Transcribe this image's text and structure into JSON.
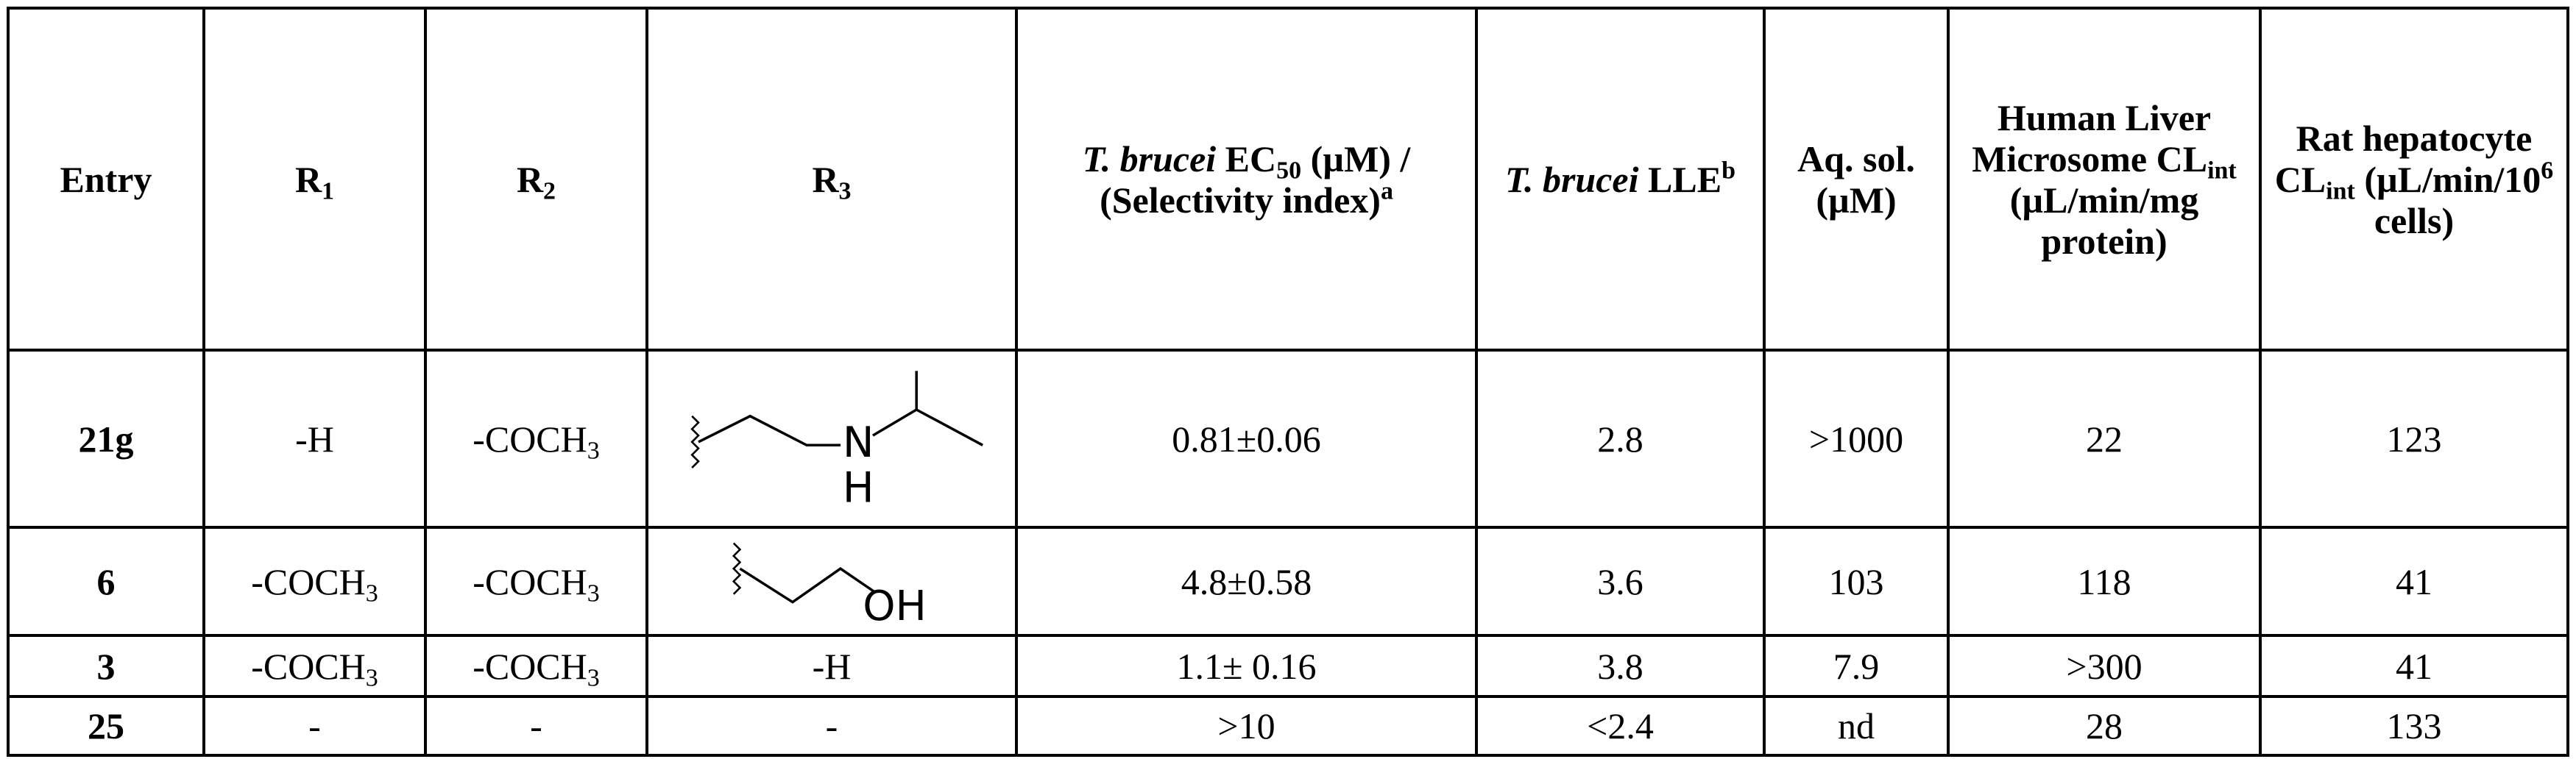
{
  "table": {
    "header": [
      [
        {
          "text": "Entry"
        }
      ],
      [
        {
          "text": "R"
        },
        {
          "text": "1",
          "style": "sub"
        }
      ],
      [
        {
          "text": "R"
        },
        {
          "text": "2",
          "style": "sub"
        }
      ],
      [
        {
          "text": "R"
        },
        {
          "text": "3",
          "style": "sub"
        }
      ],
      [
        {
          "text": "T. brucei",
          "style": "i"
        },
        {
          "text": " EC"
        },
        {
          "text": "50",
          "style": "sub"
        },
        {
          "text": " (µM) / (Selectivity index)"
        },
        {
          "text": "a",
          "style": "sup"
        }
      ],
      [
        {
          "text": "T. brucei",
          "style": "i"
        },
        {
          "text": " LLE"
        },
        {
          "text": "b",
          "style": "sup"
        }
      ],
      [
        {
          "text": "Aq. sol. (µM)"
        }
      ],
      [
        {
          "text": "Human Liver Microsome CL"
        },
        {
          "text": "int",
          "style": "sub"
        },
        {
          "text": " (µL/min/mg protein)"
        }
      ],
      [
        {
          "text": "Rat hepatocyte CL"
        },
        {
          "text": "int",
          "style": "sub"
        },
        {
          "text": " (µL/min/10"
        },
        {
          "text": "6",
          "style": "sup"
        },
        {
          "text": " cells)"
        }
      ]
    ],
    "rows": [
      [
        [
          {
            "text": "21g"
          }
        ],
        [
          {
            "text": "-H"
          }
        ],
        [
          {
            "text": "-COCH"
          },
          {
            "text": "3",
            "style": "sub"
          }
        ],
        [
          {
            "text": "N",
            "style": "atom"
          },
          {
            "text": "H",
            "style": "atom"
          }
        ],
        [
          {
            "text": "0.81±0.06"
          }
        ],
        [
          {
            "text": 2.8
          }
        ],
        [
          {
            "text": ">1000"
          }
        ],
        [
          {
            "text": 22
          }
        ],
        [
          {
            "text": 123
          }
        ]
      ],
      [
        [
          {
            "text": 6
          }
        ],
        [
          {
            "text": "-COCH"
          },
          {
            "text": "3",
            "style": "sub"
          }
        ],
        [
          {
            "text": "-COCH"
          },
          {
            "text": "3",
            "style": "sub"
          }
        ],
        [
          {
            "text": "OH",
            "style": "atom"
          }
        ],
        [
          {
            "text": "4.8±0.58"
          }
        ],
        [
          {
            "text": 3.6
          }
        ],
        [
          {
            "text": 103
          }
        ],
        [
          {
            "text": 118
          }
        ],
        [
          {
            "text": 41
          }
        ]
      ],
      [
        [
          {
            "text": 3
          }
        ],
        [
          {
            "text": "-COCH"
          },
          {
            "text": "3",
            "style": "sub"
          }
        ],
        [
          {
            "text": "-COCH"
          },
          {
            "text": "3",
            "style": "sub"
          }
        ],
        [
          {
            "text": "-H"
          }
        ],
        [
          {
            "text": "1.1± 0.16"
          }
        ],
        [
          {
            "text": 3.8
          }
        ],
        [
          {
            "text": 7.9
          }
        ],
        [
          {
            "text": ">300"
          }
        ],
        [
          {
            "text": 41
          }
        ]
      ],
      [
        [
          {
            "text": 25
          }
        ],
        [
          {
            "text": "-"
          }
        ],
        [
          {
            "text": "-"
          }
        ],
        [
          {
            "text": "-"
          }
        ],
        [
          {
            "text": ">10"
          }
        ],
        [
          {
            "text": "<2.4"
          }
        ],
        [
          {
            "text": "nd"
          }
        ],
        [
          {
            "text": 28
          }
        ],
        [
          {
            "text": 133
          }
        ]
      ]
    ]
  }
}
